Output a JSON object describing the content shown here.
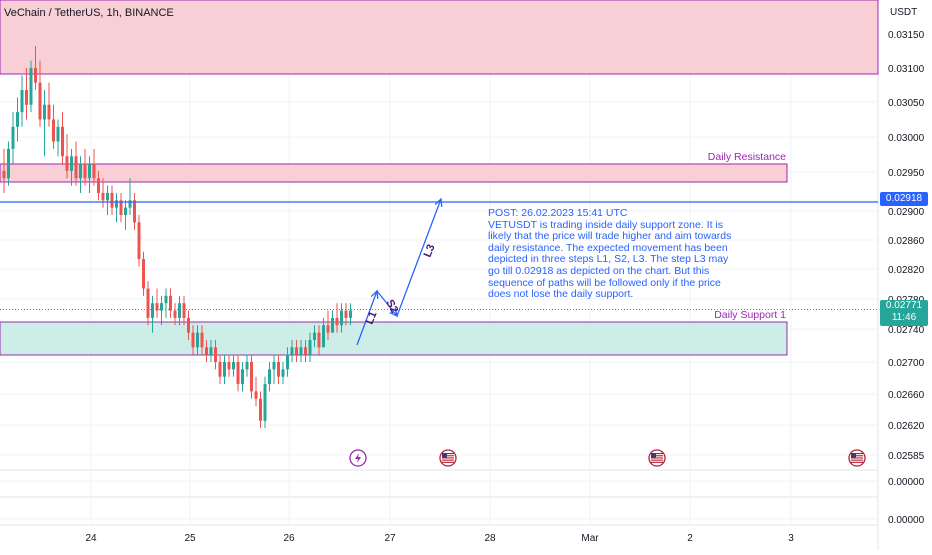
{
  "chart_data": {
    "type": "candlestick",
    "title": "VeChain / TetherUS, 1h, BINANCE",
    "currency_label": "USDT",
    "y_ticks": [
      "0.03150",
      "0.03100",
      "0.03050",
      "0.03000",
      "0.02950",
      "0.02900",
      "0.02860",
      "0.02820",
      "0.02780",
      "0.02740",
      "0.02700",
      "0.02660",
      "0.02620",
      "0.02585",
      "0.00000",
      "0.00000"
    ],
    "x_ticks": [
      "24",
      "25",
      "26",
      "27",
      "28",
      "Mar",
      "2",
      "3"
    ],
    "last_price": "0.02771",
    "countdown": "11:46",
    "marked_level": "0.02918",
    "zones": [
      {
        "name": "resistance-zone-top",
        "from": 0.031,
        "to": 0.032,
        "color": "#f7cfd4"
      },
      {
        "name": "daily-resistance-zone",
        "label": "Daily Resistance",
        "from": 0.02945,
        "to": 0.0297,
        "color": "#f7cfd4"
      },
      {
        "name": "daily-support-zone",
        "label": "Daily Support 1",
        "from": 0.0271,
        "to": 0.02755,
        "color": "#cdeee6"
      }
    ],
    "path_labels": [
      "L1",
      "S2",
      "L3"
    ],
    "candles": [
      [
        0.0296,
        0.0299,
        0.0293,
        0.0295
      ],
      [
        0.0295,
        0.03,
        0.0294,
        0.0299
      ],
      [
        0.0299,
        0.0304,
        0.0297,
        0.0302
      ],
      [
        0.0302,
        0.0306,
        0.03,
        0.0304
      ],
      [
        0.0304,
        0.0309,
        0.0302,
        0.0307
      ],
      [
        0.0307,
        0.031,
        0.0303,
        0.0305
      ],
      [
        0.0305,
        0.0311,
        0.0304,
        0.031
      ],
      [
        0.031,
        0.0313,
        0.0307,
        0.0308
      ],
      [
        0.0308,
        0.0311,
        0.0302,
        0.0303
      ],
      [
        0.0303,
        0.0307,
        0.0298,
        0.0305
      ],
      [
        0.0305,
        0.0308,
        0.0302,
        0.0303
      ],
      [
        0.0303,
        0.0305,
        0.0299,
        0.03
      ],
      [
        0.03,
        0.0303,
        0.0298,
        0.0302
      ],
      [
        0.0302,
        0.0304,
        0.0297,
        0.0298
      ],
      [
        0.0298,
        0.0301,
        0.0295,
        0.0296
      ],
      [
        0.0296,
        0.0299,
        0.0294,
        0.0298
      ],
      [
        0.0298,
        0.03,
        0.0294,
        0.0295
      ],
      [
        0.0295,
        0.0298,
        0.0293,
        0.0297
      ],
      [
        0.0297,
        0.0299,
        0.0294,
        0.0295
      ],
      [
        0.0295,
        0.0298,
        0.0293,
        0.0297
      ],
      [
        0.0297,
        0.0299,
        0.0294,
        0.0295
      ],
      [
        0.0295,
        0.0296,
        0.0292,
        0.0293
      ],
      [
        0.0293,
        0.0295,
        0.0291,
        0.0292
      ],
      [
        0.0292,
        0.0294,
        0.029,
        0.0293
      ],
      [
        0.0293,
        0.0294,
        0.029,
        0.0291
      ],
      [
        0.0291,
        0.0293,
        0.0289,
        0.0292
      ],
      [
        0.0292,
        0.0293,
        0.0289,
        0.029
      ],
      [
        0.029,
        0.0292,
        0.0288,
        0.0291
      ],
      [
        0.0291,
        0.0295,
        0.029,
        0.0292
      ],
      [
        0.0292,
        0.0293,
        0.0288,
        0.0289
      ],
      [
        0.0289,
        0.029,
        0.0283,
        0.0284
      ],
      [
        0.0284,
        0.0285,
        0.0279,
        0.028
      ],
      [
        0.028,
        0.0281,
        0.0275,
        0.0276
      ],
      [
        0.0276,
        0.0279,
        0.0274,
        0.0278
      ],
      [
        0.0278,
        0.028,
        0.0276,
        0.0277
      ],
      [
        0.0277,
        0.0279,
        0.0275,
        0.0278
      ],
      [
        0.0278,
        0.028,
        0.0276,
        0.0279
      ],
      [
        0.0279,
        0.028,
        0.0276,
        0.0277
      ],
      [
        0.0277,
        0.0278,
        0.0275,
        0.0276
      ],
      [
        0.0276,
        0.0279,
        0.0275,
        0.0278
      ],
      [
        0.0278,
        0.0279,
        0.0275,
        0.0276
      ],
      [
        0.0276,
        0.0277,
        0.0273,
        0.0274
      ],
      [
        0.0274,
        0.0275,
        0.0271,
        0.0272
      ],
      [
        0.0272,
        0.0275,
        0.0271,
        0.0274
      ],
      [
        0.0274,
        0.0275,
        0.0271,
        0.0272
      ],
      [
        0.0272,
        0.0273,
        0.027,
        0.0271
      ],
      [
        0.0271,
        0.0273,
        0.027,
        0.0272
      ],
      [
        0.0272,
        0.0273,
        0.0269,
        0.027
      ],
      [
        0.027,
        0.0271,
        0.0267,
        0.0268
      ],
      [
        0.0268,
        0.0271,
        0.0267,
        0.027
      ],
      [
        0.027,
        0.0271,
        0.0268,
        0.0269
      ],
      [
        0.0269,
        0.0271,
        0.0268,
        0.027
      ],
      [
        0.027,
        0.0271,
        0.0266,
        0.0267
      ],
      [
        0.0267,
        0.027,
        0.0266,
        0.0269
      ],
      [
        0.0269,
        0.0271,
        0.0268,
        0.027
      ],
      [
        0.027,
        0.0271,
        0.0265,
        0.0266
      ],
      [
        0.0266,
        0.0268,
        0.0264,
        0.0265
      ],
      [
        0.0265,
        0.0266,
        0.0261,
        0.0262
      ],
      [
        0.0262,
        0.0268,
        0.0261,
        0.0267
      ],
      [
        0.0267,
        0.027,
        0.0266,
        0.0269
      ],
      [
        0.0269,
        0.0271,
        0.0267,
        0.027
      ],
      [
        0.027,
        0.0271,
        0.0267,
        0.0268
      ],
      [
        0.0268,
        0.027,
        0.0267,
        0.0269
      ],
      [
        0.0269,
        0.0272,
        0.0268,
        0.0271
      ],
      [
        0.0271,
        0.0273,
        0.027,
        0.0272
      ],
      [
        0.0272,
        0.0273,
        0.027,
        0.0271
      ],
      [
        0.0271,
        0.0273,
        0.027,
        0.0272
      ],
      [
        0.0272,
        0.0273,
        0.027,
        0.0271
      ],
      [
        0.0271,
        0.0274,
        0.027,
        0.0273
      ],
      [
        0.0273,
        0.0275,
        0.0272,
        0.0274
      ],
      [
        0.0274,
        0.0275,
        0.0271,
        0.0272
      ],
      [
        0.0272,
        0.0276,
        0.0272,
        0.0275
      ],
      [
        0.0275,
        0.0277,
        0.0273,
        0.0274
      ],
      [
        0.0274,
        0.0277,
        0.0274,
        0.0276
      ],
      [
        0.0276,
        0.0278,
        0.0274,
        0.0275
      ],
      [
        0.0275,
        0.0278,
        0.0274,
        0.0277
      ],
      [
        0.0277,
        0.0278,
        0.0275,
        0.0276
      ],
      [
        0.0276,
        0.0278,
        0.0275,
        0.0277
      ]
    ]
  },
  "annotation": {
    "lines": [
      "POST: 26.02.2023 15:41 UTC",
      "VETUSDT is trading inside daily support zone. It is likely that the price will trade higher and aim towards daily resistance. The expected movement has been depicted in three steps L1, S2, L3. The step L3 may go till 0.02918 as depicted on the chart. But this sequence of paths will be followed only if the price does not lose the daily support."
    ]
  },
  "colors": {
    "up": "#26a69a",
    "down": "#ef5350",
    "zone_border": "#9c27b0",
    "accent": "#2962ff",
    "zone_label": "#9c27b0"
  },
  "event_icons": [
    "lightning-event-icon",
    "us-flag-event-icon",
    "us-flag-event-icon",
    "us-flag-event-icon"
  ]
}
